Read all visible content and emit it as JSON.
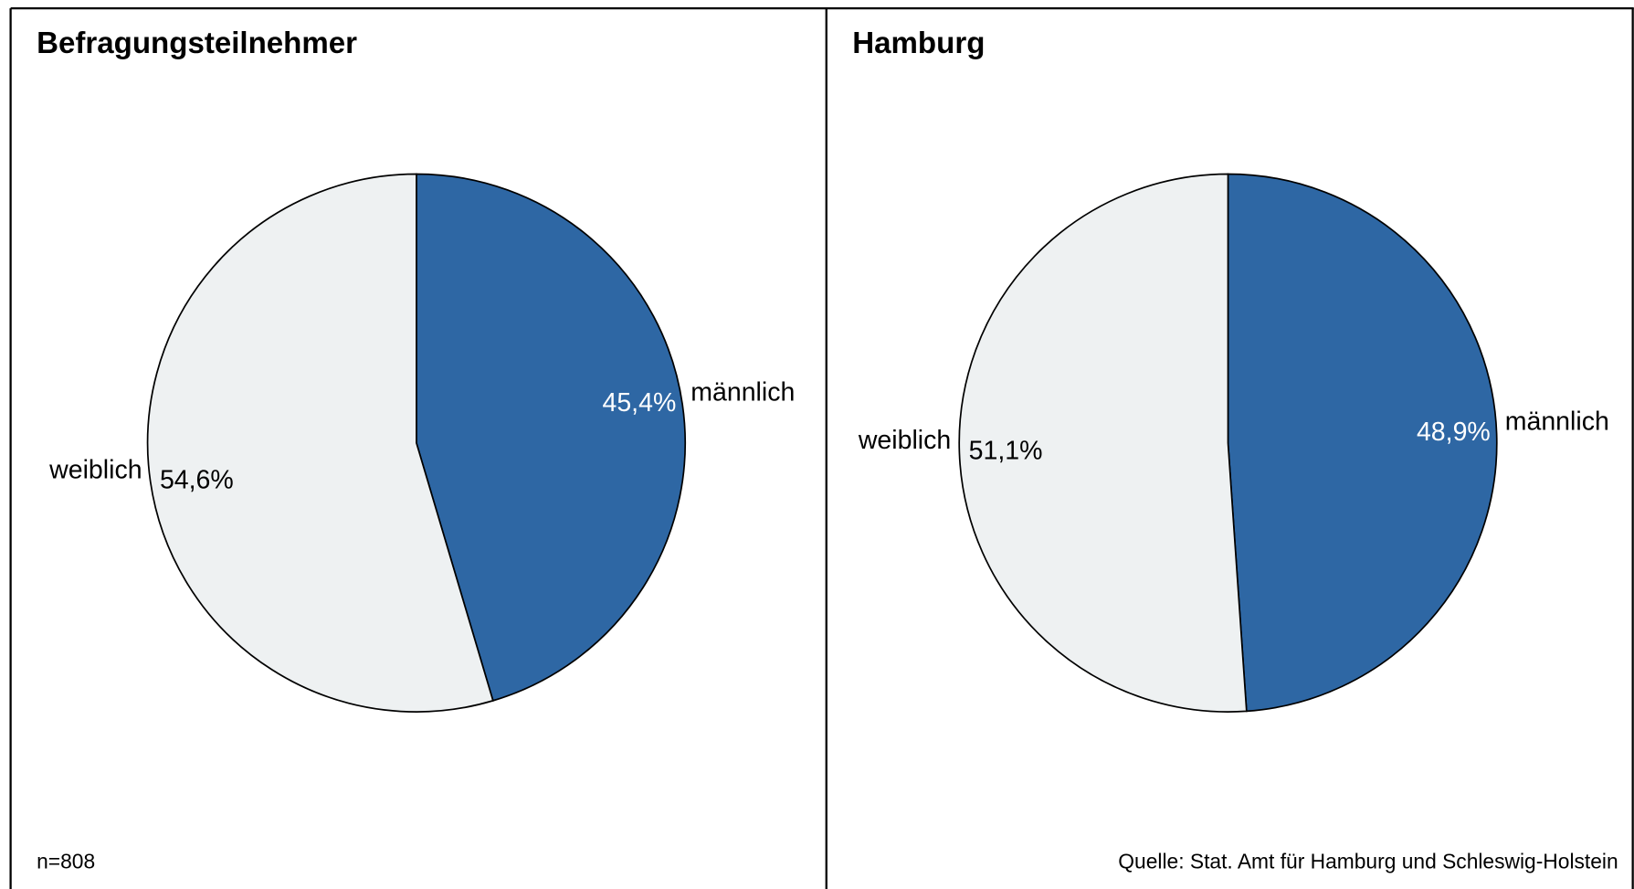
{
  "chart_data": [
    {
      "type": "pie",
      "title": "Befragungsteilnehmer",
      "categories": [
        "männlich",
        "weiblich"
      ],
      "values": [
        45.4,
        54.6
      ],
      "value_labels": [
        "45,4%",
        "54,6%"
      ],
      "colors": [
        "#2e67a4",
        "#eef1f2"
      ],
      "label_colors": [
        "#ffffff",
        "#000000"
      ],
      "annotation": "n=808"
    },
    {
      "type": "pie",
      "title": "Hamburg",
      "categories": [
        "männlich",
        "weiblich"
      ],
      "values": [
        48.9,
        51.1
      ],
      "value_labels": [
        "48,9%",
        "51,1%"
      ],
      "colors": [
        "#2e67a4",
        "#eef1f2"
      ],
      "label_colors": [
        "#ffffff",
        "#000000"
      ],
      "annotation": "Quelle: Stat. Amt für Hamburg und Schleswig-Holstein"
    }
  ]
}
